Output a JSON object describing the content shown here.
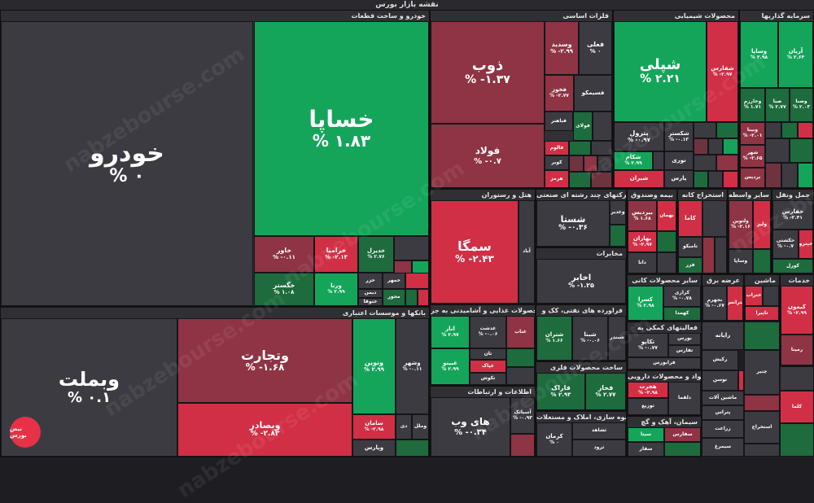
{
  "title": "نقشه بازار بورس",
  "watermark": "nabzebourse.com",
  "logo_text": "نبض بورس",
  "colors": {
    "gray": "#3d3b42",
    "green": "#14a55a",
    "darkgreen": "#1e6b3d",
    "red": "#d12f45",
    "darkred": "#8e3444",
    "mutedred": "#6d3440"
  },
  "sectors": {
    "khodro": "خودرو و ساخت قطعات",
    "felezat": "فلزات اساسی",
    "shimi": "محصولات شیمیایی",
    "sarmaye": "سرمایه گذاریها",
    "bank": "بانکها و موسسات اعتباری",
    "hotel": "هتل و رستوران",
    "chand": "شرکتهای چند رشته ای صنعتی",
    "bime": "بیمه وصندوق",
    "estekhraj_kani": "استخراج کانه",
    "vasete": "سایر واسطه",
    "haml": "حمل ونقل",
    "mokhaberat": "مخابرات",
    "sayer_kani": "سایر محصولات کانی",
    "arzeh_barq": "عرضه برق",
    "mashin": "ماشین",
    "khadamat": "خدمات",
    "ghazaei": "محصولات غذایی و آشامیدنی به جز",
    "naft": "فراورده های نفتی، کک و",
    "komaki": "فعالیتهای کمکی به",
    "felezi": "ساخت محصولات فلزی",
    "mavad_daroei": "مواد و محصولات دارویی",
    "ettelaat": "اطلاعات و ارتباطات",
    "anbooh": "انبوه سازی، املاک و مستغلات",
    "siman": "سیمان، آهک و گچ"
  },
  "tiles": {
    "khodro": {
      "n": "خودرو",
      "v": "% ۰"
    },
    "khsapa": {
      "n": "خساپا",
      "v": "% ۱.۸۳"
    },
    "khavar": {
      "n": "خاور",
      "v": "% -۰.۱۱"
    },
    "khzamia": {
      "n": "خزامیا",
      "v": "% -۲.۱۳"
    },
    "khdizel": {
      "n": "خدیزل",
      "v": "% ۲.۷۶"
    },
    "khgostar": {
      "n": "خگستر",
      "v": "% ۱.۰۸"
    },
    "vrna": {
      "n": "ورنا",
      "v": "% ۲.۹۹"
    },
    "khzar": {
      "n": "خزر"
    },
    "khmhor": {
      "n": "خمهر"
    },
    "dimen": {
      "n": "دیمن"
    },
    "khtoosa": {
      "n": "ختوقا"
    },
    "mhvar": {
      "n": "محور"
    },
    "zob": {
      "n": "ذوب",
      "v": "% -۱.۳۷"
    },
    "vsadid": {
      "n": "وسدید",
      "v": "% -۲.۹۹"
    },
    "feli": {
      "n": "فعلی",
      "v": "% ۰"
    },
    "fooolad": {
      "n": "فولاد",
      "v": "% -۰.۷"
    },
    "fkhooz": {
      "n": "فخوز",
      "v": "% -۲.۷۷"
    },
    "fsimco": {
      "n": "فسیمکو"
    },
    "foolai": {
      "n": "فولای"
    },
    "fjahaz": {
      "n": "فباهنر"
    },
    "alumina": {
      "n": "فالوم"
    },
    "kavir": {
      "n": "کویر"
    },
    "hormoz": {
      "n": "هرمز"
    },
    "shapli": {
      "n": "شپلی",
      "v": "% ۲.۲۱"
    },
    "shfaros": {
      "n": "شفارس",
      "v": "% -۲.۹۷"
    },
    "petrol": {
      "n": "پترول",
      "v": "% -۰.۹۷"
    },
    "shkaster": {
      "n": "شکستر",
      "v": "% -۰.۱۳"
    },
    "shkam": {
      "n": "شکام",
      "v": "% ۲.۹۹"
    },
    "noori": {
      "n": "نوری"
    },
    "shiran": {
      "n": "شیران"
    },
    "pars": {
      "n": "پارس"
    },
    "vsapa": {
      "n": "وساپا",
      "v": "% ۲.۹۸"
    },
    "arian": {
      "n": "آریان",
      "v": "% ۲.۶۴"
    },
    "vkharazm": {
      "n": "وخارزم",
      "v": "% ۱.۷۱"
    },
    "sba": {
      "n": "صبا",
      "v": "% ۲.۷۷"
    },
    "vsina": {
      "n": "وصنا",
      "v": "% ۲.۰۳"
    },
    "vbina": {
      "n": "وبینا",
      "v": "% -۲.۰۱"
    },
    "shahr": {
      "n": "شهر",
      "v": "% -۲.۶۵"
    },
    "bardis": {
      "n": "بردیس"
    },
    "vbmellat": {
      "n": "وبملت",
      "v": "% ۰.۱"
    },
    "vtejarat": {
      "n": "وتجارت",
      "v": "% -۱.۶۸"
    },
    "vbsader": {
      "n": "وبصادر",
      "v": "% -۲.۸۳"
    },
    "vnovin": {
      "n": "ونوین",
      "v": "% ۲.۹۹"
    },
    "vshahr": {
      "n": "وشهر",
      "v": "% -۰.۱۱"
    },
    "vsalman": {
      "n": "سامان",
      "v": "% -۲.۹۸"
    },
    "vday": {
      "n": "دی"
    },
    "vmellal": {
      "n": "وملل"
    },
    "vpars": {
      "n": "وپارس"
    },
    "semga": {
      "n": "سمگا",
      "v": "% -۲.۴۳"
    },
    "abad": {
      "n": "آباد"
    },
    "shasta": {
      "n": "شستا",
      "v": "% -۰.۳۶"
    },
    "vghadir": {
      "n": "وغدیر"
    },
    "akhabar": {
      "n": "اخابر",
      "v": "% -۱.۲۵"
    },
    "bidis": {
      "n": "بیردیس",
      "v": "% ۱.۶۸"
    },
    "bahman": {
      "n": "بهمان"
    },
    "bpas": {
      "n": "بهاران",
      "v": "% -۲.۹۷"
    },
    "dana": {
      "n": "دانا"
    },
    "kama": {
      "n": "کاما"
    },
    "tamiko": {
      "n": "تامیکو"
    },
    "fezar": {
      "n": "فزر"
    },
    "valtamin": {
      "n": "ولتوین",
      "v": "% -۲.۱۶"
    },
    "vliz": {
      "n": "ولیز"
    },
    "vsapa2": {
      "n": "وساپا"
    },
    "hafars": {
      "n": "حفارس",
      "v": "% -۲.۴۱"
    },
    "hkashti": {
      "n": "حکشتی",
      "v": "% -۰.۷"
    },
    "hpeyma": {
      "n": "حپترو"
    },
    "kooril": {
      "n": "کورل"
    },
    "kesra": {
      "n": "کسرا",
      "v": "% ۲.۹۸"
    },
    "kerazi": {
      "n": "کرازی",
      "v": "% -۰.۷۸"
    },
    "kahmda": {
      "n": "کهمدا"
    },
    "bjohar": {
      "n": "بجهرم",
      "v": "% -۰.۶۷"
    },
    "btab": {
      "n": "بترانس"
    },
    "khatab": {
      "n": "ختراب"
    },
    "tapira": {
      "n": "تاپیرا"
    },
    "kimon": {
      "n": "کیمون",
      "v": "% -۲.۹۹"
    },
    "rmpna": {
      "n": "رمپنا"
    },
    "ghnosh": {
      "n": "غدشت",
      "v": "% -۰.۰۶"
    },
    "ghnab": {
      "n": "غناب"
    },
    "tan": {
      "n": "تان"
    },
    "ghpak": {
      "n": "غپاک"
    },
    "nshokar": {
      "n": "تکوش"
    },
    "anvar": {
      "n": "انار",
      "v": "% ۲.۹۷"
    },
    "ghbina": {
      "n": "غبینو",
      "v": "% ۲.۹۹"
    },
    "shtran": {
      "n": "شتران",
      "v": "% ۱.۶۶"
    },
    "shbina": {
      "n": "شبنا",
      "v": "% -۰.۰۶"
    },
    "shbandar": {
      "n": "شبندر"
    },
    "tkochak": {
      "n": "تکاپو",
      "v": "% -۰.۷۷"
    },
    "bours": {
      "n": "بورس"
    },
    "tfars": {
      "n": "تفارس"
    },
    "faraber": {
      "n": "فرابورس"
    },
    "fkhak": {
      "n": "فاراک",
      "v": "% ۲.۹۳"
    },
    "fkhaz": {
      "n": "فخاز",
      "v": "% ۲.۷۷"
    },
    "hjrat": {
      "n": "هجرت",
      "v": "% -۲.۹۸"
    },
    "tozir": {
      "n": "توزیع"
    },
    "dlqma": {
      "n": "دلقما"
    },
    "hiweb": {
      "n": "های وب",
      "v": "% -۰.۳۴"
    },
    "asiatek": {
      "n": "آسیاتک",
      "v": "% -۰.۹۳"
    },
    "kerman": {
      "n": "کرمان",
      "v": "% ۰"
    },
    "thshahd": {
      "n": "ثشاهد"
    },
    "troud": {
      "n": "ثرود"
    },
    "sita": {
      "n": "سیتا"
    },
    "sfars": {
      "n": "سفارس"
    },
    "sfara": {
      "n": "سفار"
    },
    "rakish": {
      "n": "رکیش"
    },
    "raia": {
      "n": "رایانه"
    },
    "toosan": {
      "n": "توسن"
    },
    "mashin_alat": {
      "n": "ماشین آلات"
    },
    "petraj": {
      "n": "پتراس"
    },
    "zeraat": {
      "n": "زراعت"
    },
    "simorgh": {
      "n": "سیمرغ"
    },
    "chaneer": {
      "n": "چنیر"
    },
    "kalma": {
      "n": "کلما"
    },
    "estekhraj": {
      "n": "استخراج"
    }
  }
}
